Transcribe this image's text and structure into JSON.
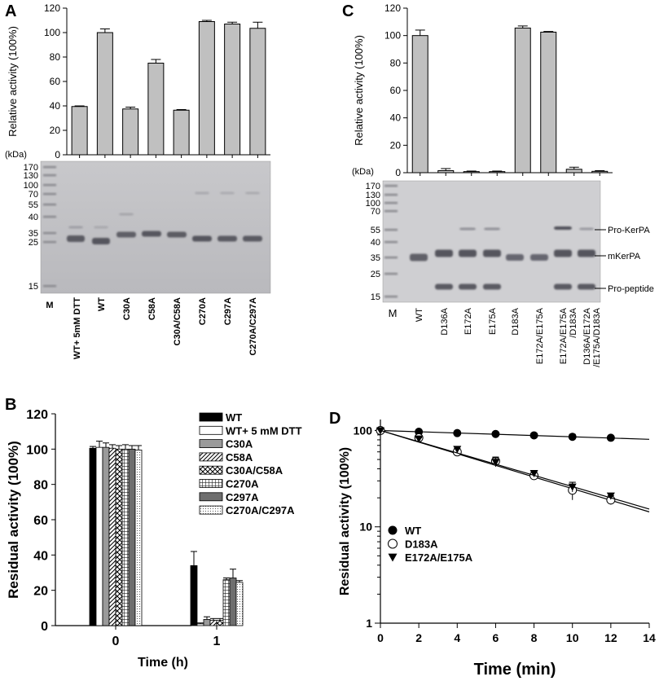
{
  "figure": {
    "description_labels": [
      "A",
      "B",
      "C",
      "D"
    ]
  },
  "gel_A": {
    "kda_label": "(kDa)",
    "markers": [
      "170",
      "130",
      "100",
      "70",
      "55",
      "40",
      "35",
      "25",
      "15"
    ],
    "lanes": [
      "M",
      "WT+ 5mM DTT",
      "WT",
      "C30A",
      "C58A",
      "C30A/C58A",
      "C270A",
      "C297A",
      "C270A/C297A"
    ]
  },
  "gel_C": {
    "kda_label": "(kDa)",
    "markers": [
      "170",
      "130",
      "100",
      "70",
      "55",
      "40",
      "35",
      "25",
      "15"
    ],
    "lanes": [
      "M",
      "WT",
      "D136A",
      "E172A",
      "E175A",
      "D183A",
      "E172A/E175A",
      "E172A/E175A/D183A",
      "D136A/E172A/E175A/D183A"
    ],
    "lane_display": [
      [
        "M"
      ],
      [
        "WT"
      ],
      [
        "D136A"
      ],
      [
        "E172A"
      ],
      [
        "E175A"
      ],
      [
        "D183A"
      ],
      [
        "E172A/E175A"
      ],
      [
        "E172A/E175A",
        "/D183A"
      ],
      [
        "D136A/E172A",
        "/E175A/D183A"
      ]
    ],
    "band_labels": [
      "Pro-KerPA",
      "mKerPA",
      "Pro-peptide"
    ]
  },
  "chart_data": [
    {
      "panel": "A",
      "type": "bar",
      "categories": [
        "WT+ 5mM DTT",
        "WT",
        "C30A",
        "C58A",
        "C30A/C58A",
        "C270A",
        "C297A",
        "C270A/C297A"
      ],
      "values": [
        39.5,
        100,
        37.5,
        75,
        36.5,
        109,
        107,
        103.5
      ],
      "errors": [
        0.5,
        3,
        1.5,
        3,
        0.5,
        1,
        1.5,
        5
      ],
      "ylabel": "Relative activity (100%)",
      "ylim": [
        0,
        120
      ],
      "yticks": [
        0,
        20,
        40,
        60,
        80,
        100,
        120
      ],
      "color": "#c0c0c0"
    },
    {
      "panel": "B",
      "type": "bar",
      "categories": [
        "0",
        "1"
      ],
      "xlabel": "Time (h)",
      "ylabel": "Residual activity (100%)",
      "ylim": [
        0,
        120
      ],
      "yticks": [
        0,
        20,
        40,
        60,
        80,
        100,
        120
      ],
      "legend_position": "top-right",
      "series": [
        {
          "name": "WT",
          "values": [
            100.5,
            34
          ],
          "errors": [
            1,
            8
          ],
          "fill": "solid-black"
        },
        {
          "name": "WT+ 5 mM DTT",
          "values": [
            101,
            1
          ],
          "errors": [
            3.5,
            0.5
          ],
          "fill": "white"
        },
        {
          "name": "C30A",
          "values": [
            101,
            3.5
          ],
          "errors": [
            2.5,
            1.5
          ],
          "fill": "gray"
        },
        {
          "name": "C58A",
          "values": [
            100.5,
            3
          ],
          "errors": [
            2,
            1
          ],
          "fill": "diagonal"
        },
        {
          "name": "C30A/C58A",
          "values": [
            100,
            3
          ],
          "errors": [
            2,
            1
          ],
          "fill": "crosshatch"
        },
        {
          "name": "C270A",
          "values": [
            100,
            26
          ],
          "errors": [
            2.5,
            1
          ],
          "fill": "grid"
        },
        {
          "name": "C297A",
          "values": [
            100,
            27
          ],
          "errors": [
            2,
            5
          ],
          "fill": "dark-gray"
        },
        {
          "name": "C270A/C297A",
          "values": [
            99.5,
            24.5
          ],
          "errors": [
            2.5,
            1
          ],
          "fill": "dotted"
        }
      ]
    },
    {
      "panel": "C",
      "type": "bar",
      "categories": [
        "WT",
        "D136A",
        "E172A",
        "E175A",
        "D183A",
        "E172A/E175A",
        "E172A/E175A/D183A",
        "D136A/E172A/E175A/D183A"
      ],
      "values": [
        100,
        1.5,
        0.8,
        0.8,
        105.5,
        102.5,
        2.5,
        1
      ],
      "errors": [
        4,
        1.5,
        0.4,
        0.4,
        1.5,
        0.5,
        1.5,
        0.5
      ],
      "ylabel": "Relative activity (100%)",
      "ylim": [
        0,
        120
      ],
      "yticks": [
        0,
        20,
        40,
        60,
        80,
        100,
        120
      ],
      "color": "#c0c0c0"
    },
    {
      "panel": "D",
      "type": "line",
      "xlabel": "Time (min)",
      "ylabel": "Residual activity (100%)",
      "yscale": "log",
      "xlim": [
        0,
        14
      ],
      "ylim": [
        1,
        130
      ],
      "xticks": [
        0,
        2,
        4,
        6,
        8,
        10,
        12,
        14
      ],
      "yticks": [
        1,
        10,
        100
      ],
      "legend_position": "bottom-left",
      "series": [
        {
          "name": "WT",
          "marker": "filled-circle",
          "x": [
            0,
            2,
            4,
            6,
            8,
            10,
            12
          ],
          "y": [
            100,
            97,
            94,
            92,
            89,
            86,
            84
          ],
          "errors": [
            3,
            3,
            2,
            2,
            2,
            5,
            4
          ],
          "fit": [
            [
              0,
              100
            ],
            [
              14,
              81
            ]
          ]
        },
        {
          "name": "D183A",
          "marker": "open-circle",
          "x": [
            0,
            2,
            4,
            6,
            8,
            10,
            12
          ],
          "y": [
            100,
            84,
            60,
            48,
            34,
            24,
            19
          ],
          "errors": [
            3,
            3,
            5,
            5,
            3,
            5,
            2
          ],
          "fit": [
            [
              0,
              100
            ],
            [
              14,
              14.3
            ]
          ]
        },
        {
          "name": "E172A/E175A",
          "marker": "filled-triangle-down",
          "x": [
            0,
            2,
            4,
            6,
            8,
            10,
            12
          ],
          "y": [
            100,
            82,
            64,
            47,
            36,
            26,
            21
          ],
          "errors": [
            3,
            2,
            4,
            5,
            2,
            3,
            1
          ],
          "fit": [
            [
              0,
              100
            ],
            [
              14,
              15.3
            ]
          ]
        }
      ]
    }
  ]
}
